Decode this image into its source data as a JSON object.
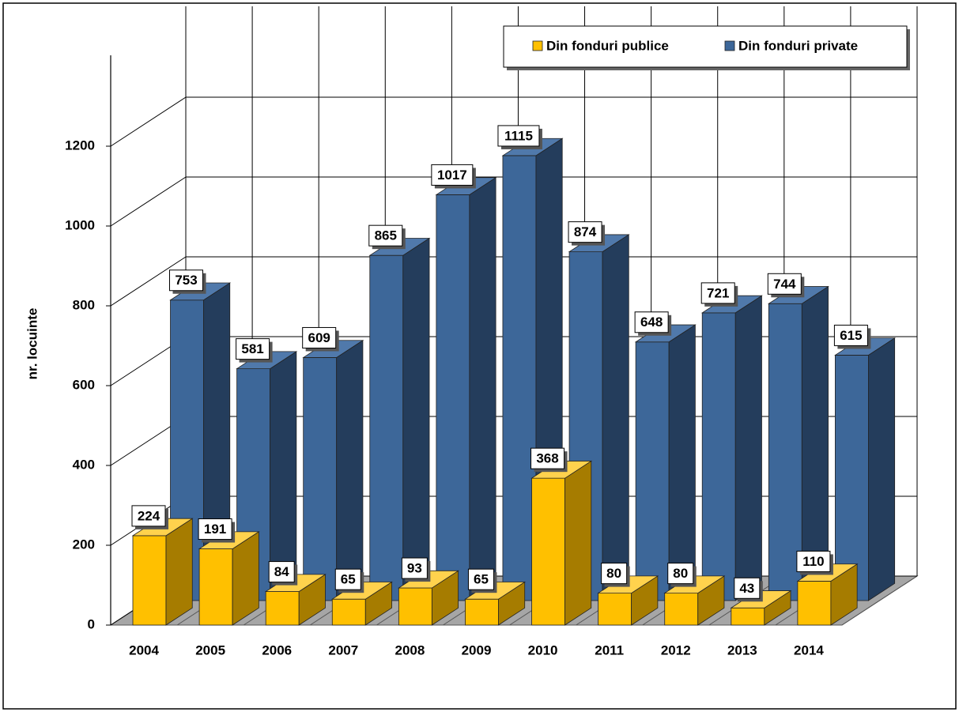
{
  "chart_data": {
    "type": "bar",
    "three_d": true,
    "y_label": "nr. locuinte",
    "categories": [
      "2004",
      "2005",
      "2006",
      "2007",
      "2008",
      "2009",
      "2010",
      "2011",
      "2012",
      "2013",
      "2014"
    ],
    "series": [
      {
        "name": "Din fonduri publice",
        "color": "#ffc000",
        "values": [
          224,
          191,
          84,
          65,
          93,
          65,
          368,
          80,
          80,
          43,
          110
        ]
      },
      {
        "name": "Din fonduri private",
        "color": "#3d6799",
        "values": [
          753,
          581,
          609,
          865,
          1017,
          1115,
          874,
          648,
          721,
          744,
          615
        ]
      }
    ],
    "ylim": [
      0,
      1200
    ],
    "yticks": [
      0,
      200,
      400,
      600,
      800,
      1000,
      1200
    ],
    "grid": true,
    "legend": "top-right"
  }
}
